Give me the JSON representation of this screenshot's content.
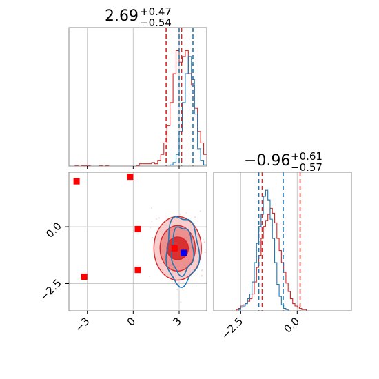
{
  "chart_data": {
    "type": "corner",
    "colors": {
      "red": "#d62728",
      "blue": "#1f77b4",
      "marker_red": "#ff0000",
      "marker_blue": "#0000ff",
      "grid": "#c8c8c8",
      "frame": "#888888"
    },
    "parameters": [
      {
        "title": {
          "value": "2.69",
          "plus": "+0.47",
          "minus": "−0.54"
        },
        "range": [
          -4.2,
          4.8
        ],
        "ticks": [
          {
            "value": -3,
            "label": "−3"
          },
          {
            "value": 0,
            "label": "0"
          },
          {
            "value": 3,
            "label": "3"
          }
        ]
      },
      {
        "title": {
          "value": "−0.96",
          "plus": "+0.61",
          "minus": "−0.57"
        },
        "range": [
          -3.7,
          2.4
        ],
        "ticks": [
          {
            "value": -2.5,
            "label": "−2.5"
          },
          {
            "value": 0,
            "label": "0.0"
          }
        ]
      }
    ],
    "hist_param1": {
      "edges_start": -4.2,
      "bin_width": 0.2,
      "ylim": [
        0,
        1.2
      ],
      "red": [
        0,
        0,
        0.005,
        0,
        0.005,
        0.005,
        0.005,
        0,
        0,
        0,
        0.005,
        0,
        0.005,
        0,
        0,
        0,
        0,
        0,
        0,
        0,
        0,
        0,
        0.005,
        0.02,
        0.02,
        0.02,
        0.02,
        0.03,
        0.02,
        0.05,
        0.1,
        0.2,
        0.35,
        0.55,
        0.8,
        1.0,
        0.9,
        0.95,
        1.0,
        0.8,
        0.7,
        0.5,
        0.3,
        0.2,
        0.1
      ],
      "blue": [
        0,
        0,
        0,
        0,
        0,
        0,
        0,
        0,
        0,
        0,
        0,
        0,
        0,
        0,
        0,
        0,
        0,
        0,
        0,
        0,
        0,
        0,
        0,
        0,
        0,
        0,
        0,
        0,
        0,
        0,
        0,
        0,
        0,
        0.01,
        0.03,
        0.1,
        0.3,
        0.55,
        0.8,
        0.95,
        0.75,
        0.45,
        0.15,
        0.05,
        0.01
      ],
      "red_lines": [
        2.15,
        3.16
      ],
      "blue_lines": [
        3.0,
        3.9
      ]
    },
    "hist_param2": {
      "edges_start": -3.7,
      "bin_width": 0.1,
      "ylim": [
        0,
        1.15
      ],
      "red": [
        0,
        0,
        0,
        0,
        0,
        0,
        0,
        0,
        0,
        0,
        0.01,
        0.02,
        0.04,
        0.05,
        0.06,
        0.08,
        0.1,
        0.14,
        0.24,
        0.36,
        0.46,
        0.6,
        0.7,
        0.75,
        0.8,
        0.85,
        0.81,
        0.73,
        0.6,
        0.5,
        0.4,
        0.32,
        0.23,
        0.16,
        0.1,
        0.06,
        0.04,
        0.03,
        0.02,
        0.01,
        0.01,
        0,
        0,
        0,
        0,
        0,
        0,
        0,
        0,
        0,
        0,
        0,
        0,
        0,
        0,
        0,
        0,
        0,
        0,
        0,
        0
      ],
      "blue": [
        0,
        0,
        0,
        0,
        0,
        0,
        0,
        0,
        0,
        0,
        0,
        0.01,
        0.03,
        0.04,
        0.06,
        0.1,
        0.14,
        0.24,
        0.4,
        0.56,
        0.7,
        0.8,
        0.95,
        1.0,
        0.92,
        0.76,
        0.6,
        0.4,
        0.22,
        0.12,
        0.05,
        0.02,
        0.01,
        0,
        0,
        0,
        0,
        0,
        0,
        0,
        0,
        0,
        0,
        0,
        0,
        0,
        0,
        0,
        0,
        0,
        0,
        0,
        0,
        0,
        0,
        0,
        0,
        0,
        0,
        0,
        0
      ],
      "red_lines": [
        -1.55,
        0.13
      ],
      "blue_lines": [
        -1.7,
        -0.62
      ]
    },
    "scatter_2d": {
      "center": {
        "x": 3.0,
        "y": -1.0
      },
      "red_contours": [
        {
          "rx": 0.7,
          "ry": 0.5,
          "cx": 2.9,
          "cy": -0.95
        },
        {
          "rx": 1.15,
          "ry": 1.0,
          "cx": 2.9,
          "cy": -0.95
        },
        {
          "rx": 1.55,
          "ry": 1.4,
          "cx": 2.9,
          "cy": -0.95
        }
      ],
      "blue_contours": [
        {
          "rx": 0.7,
          "ry": 1.05,
          "cx": 3.2,
          "cy": -1.05
        },
        {
          "rx": 1.05,
          "ry": 1.5,
          "cx": 3.2,
          "cy": -1.05
        }
      ],
      "red_points": [
        {
          "x": -3.7,
          "y": 2.0
        },
        {
          "x": -0.2,
          "y": 2.2
        },
        {
          "x": 0.3,
          "y": -0.1
        },
        {
          "x": 0.3,
          "y": -1.9
        },
        {
          "x": -3.2,
          "y": -2.2
        },
        {
          "x": 2.7,
          "y": -0.95
        }
      ],
      "blue_points": [
        {
          "x": 3.3,
          "y": -1.15
        }
      ]
    }
  }
}
